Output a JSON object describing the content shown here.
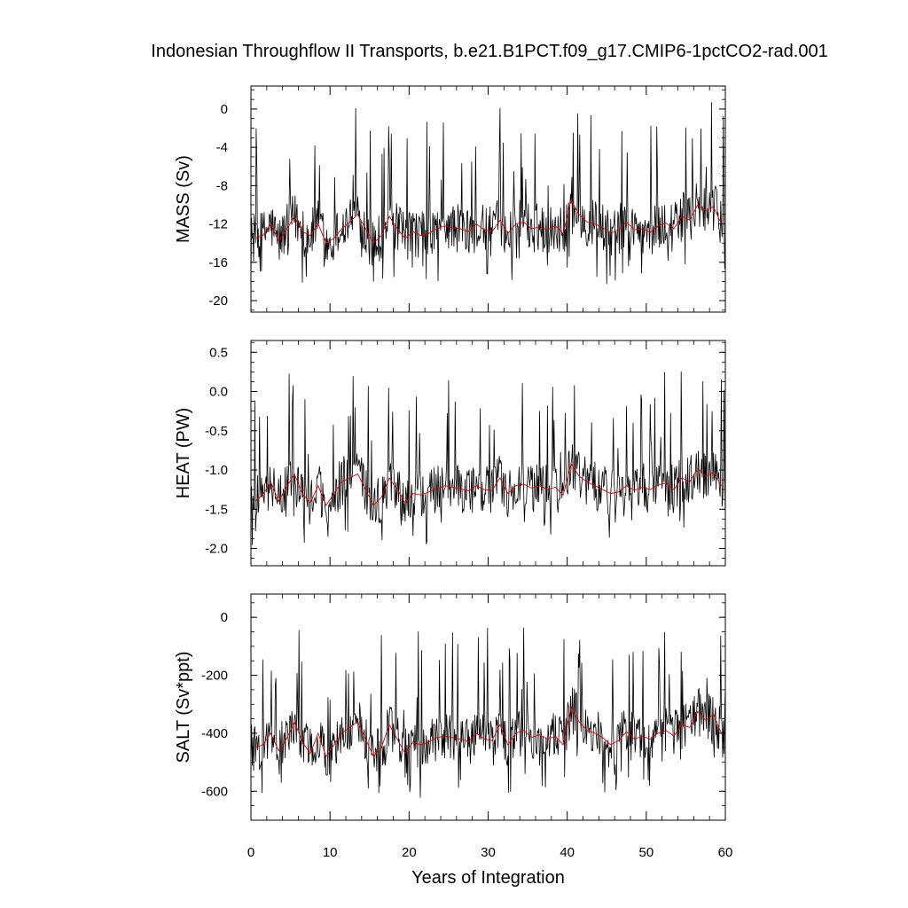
{
  "chart_data": {
    "type": "line",
    "title": "Indonesian Throughflow II Transports, b.e21.B1PCT.f09_g17.CMIP6-1pctCO2-rad.001",
    "xlabel": "Years of Integration",
    "xlim": [
      0,
      60
    ],
    "xticks": [
      "0",
      "10",
      "20",
      "30",
      "40",
      "50",
      "60"
    ],
    "colors": {
      "monthly": "#000000",
      "annual": "#e00000"
    },
    "panels": [
      {
        "ylabel": "MASS (Sv)",
        "ylim": [
          -21.2,
          2.4
        ],
        "yticks": [
          "0",
          "-4",
          "-8",
          "-12",
          "-16",
          "-20"
        ],
        "ytick_values": [
          0,
          -4,
          -8,
          -12,
          -16,
          -20
        ],
        "annual": {
          "x": [
            0.5,
            1.5,
            2.5,
            3.5,
            4.5,
            5.5,
            6.5,
            7.5,
            8.5,
            9.5,
            10.5,
            11.5,
            12.5,
            13.5,
            14.5,
            15.5,
            16.5,
            17.5,
            18.5,
            19.5,
            20.5,
            21.5,
            22.5,
            23.5,
            24.5,
            25.5,
            26.5,
            27.5,
            28.5,
            29.5,
            30.5,
            31.5,
            32.5,
            33.5,
            34.5,
            35.5,
            36.5,
            37.5,
            38.5,
            39.5,
            40.5,
            41.5,
            42.5,
            43.5,
            44.5,
            45.5,
            46.5,
            47.5,
            48.5,
            49.5,
            50.5,
            51.5,
            52.5,
            53.5,
            54.5,
            55.5,
            56.5,
            57.5,
            58.5,
            59.5
          ],
          "y": [
            -13.5,
            -13.2,
            -12.0,
            -13.8,
            -12.6,
            -11.2,
            -12.8,
            -13.2,
            -12.0,
            -14.0,
            -13.5,
            -12.5,
            -11.8,
            -11.0,
            -12.5,
            -14.0,
            -13.2,
            -11.2,
            -12.5,
            -13.5,
            -12.8,
            -13.2,
            -13.0,
            -12.5,
            -12.2,
            -12.4,
            -12.5,
            -12.8,
            -12.0,
            -12.6,
            -12.8,
            -11.6,
            -13.0,
            -12.0,
            -11.8,
            -12.5,
            -12.3,
            -12.6,
            -12.2,
            -13.0,
            -9.5,
            -11.0,
            -11.8,
            -12.0,
            -12.4,
            -13.0,
            -12.6,
            -11.8,
            -12.6,
            -12.5,
            -12.9,
            -12.2,
            -11.9,
            -12.5,
            -11.2,
            -11.6,
            -10.0,
            -10.6,
            -10.2,
            -12.0
          ]
        }
      },
      {
        "ylabel": "HEAT (PW)",
        "ylim": [
          -2.22,
          0.65
        ],
        "yticks": [
          "0.5",
          "0.0",
          "-0.5",
          "-1.0",
          "-1.5",
          "-2.0"
        ],
        "ytick_values": [
          0.5,
          0.0,
          -0.5,
          -1.0,
          -1.5,
          -2.0
        ],
        "annual": {
          "x": [
            0.5,
            1.5,
            2.5,
            3.5,
            4.5,
            5.5,
            6.5,
            7.5,
            8.5,
            9.5,
            10.5,
            11.5,
            12.5,
            13.5,
            14.5,
            15.5,
            16.5,
            17.5,
            18.5,
            19.5,
            20.5,
            21.5,
            22.5,
            23.5,
            24.5,
            25.5,
            26.5,
            27.5,
            28.5,
            29.5,
            30.5,
            31.5,
            32.5,
            33.5,
            34.5,
            35.5,
            36.5,
            37.5,
            38.5,
            39.5,
            40.5,
            41.5,
            42.5,
            43.5,
            44.5,
            45.5,
            46.5,
            47.5,
            48.5,
            49.5,
            50.5,
            51.5,
            52.5,
            53.5,
            54.5,
            55.5,
            56.5,
            57.5,
            58.5,
            59.5
          ],
          "y": [
            -1.4,
            -1.32,
            -1.15,
            -1.4,
            -1.22,
            -1.05,
            -1.3,
            -1.42,
            -1.2,
            -1.45,
            -1.3,
            -1.15,
            -1.1,
            -1.05,
            -1.25,
            -1.45,
            -1.35,
            -1.1,
            -1.25,
            -1.42,
            -1.3,
            -1.32,
            -1.28,
            -1.24,
            -1.2,
            -1.22,
            -1.24,
            -1.27,
            -1.2,
            -1.25,
            -1.26,
            -1.1,
            -1.3,
            -1.2,
            -1.18,
            -1.23,
            -1.2,
            -1.25,
            -1.22,
            -1.32,
            -0.92,
            -1.08,
            -1.15,
            -1.2,
            -1.25,
            -1.3,
            -1.28,
            -1.2,
            -1.26,
            -1.22,
            -1.25,
            -1.19,
            -1.17,
            -1.25,
            -1.1,
            -1.15,
            -0.98,
            -1.08,
            -1.03,
            -1.2
          ]
        }
      },
      {
        "ylabel": "SALT (Sv*ppt)",
        "ylim": [
          -700,
          80
        ],
        "yticks": [
          "0",
          "-200",
          "-400",
          "-600"
        ],
        "ytick_values": [
          0,
          -200,
          -400,
          -600
        ],
        "annual": {
          "x": [
            0.5,
            1.5,
            2.5,
            3.5,
            4.5,
            5.5,
            6.5,
            7.5,
            8.5,
            9.5,
            10.5,
            11.5,
            12.5,
            13.5,
            14.5,
            15.5,
            16.5,
            17.5,
            18.5,
            19.5,
            20.5,
            21.5,
            22.5,
            23.5,
            24.5,
            25.5,
            26.5,
            27.5,
            28.5,
            29.5,
            30.5,
            31.5,
            32.5,
            33.5,
            34.5,
            35.5,
            36.5,
            37.5,
            38.5,
            39.5,
            40.5,
            41.5,
            42.5,
            43.5,
            44.5,
            45.5,
            46.5,
            47.5,
            48.5,
            49.5,
            50.5,
            51.5,
            52.5,
            53.5,
            54.5,
            55.5,
            56.5,
            57.5,
            58.5,
            59.5
          ],
          "y": [
            -450,
            -440,
            -400,
            -460,
            -420,
            -360,
            -430,
            -470,
            -400,
            -480,
            -440,
            -400,
            -380,
            -360,
            -420,
            -480,
            -450,
            -370,
            -420,
            -470,
            -430,
            -440,
            -430,
            -415,
            -410,
            -415,
            -420,
            -430,
            -400,
            -420,
            -425,
            -370,
            -440,
            -400,
            -390,
            -415,
            -405,
            -420,
            -410,
            -440,
            -310,
            -360,
            -390,
            -400,
            -415,
            -440,
            -425,
            -395,
            -420,
            -410,
            -420,
            -400,
            -390,
            -410,
            -370,
            -380,
            -325,
            -355,
            -335,
            -400
          ]
        }
      }
    ]
  }
}
